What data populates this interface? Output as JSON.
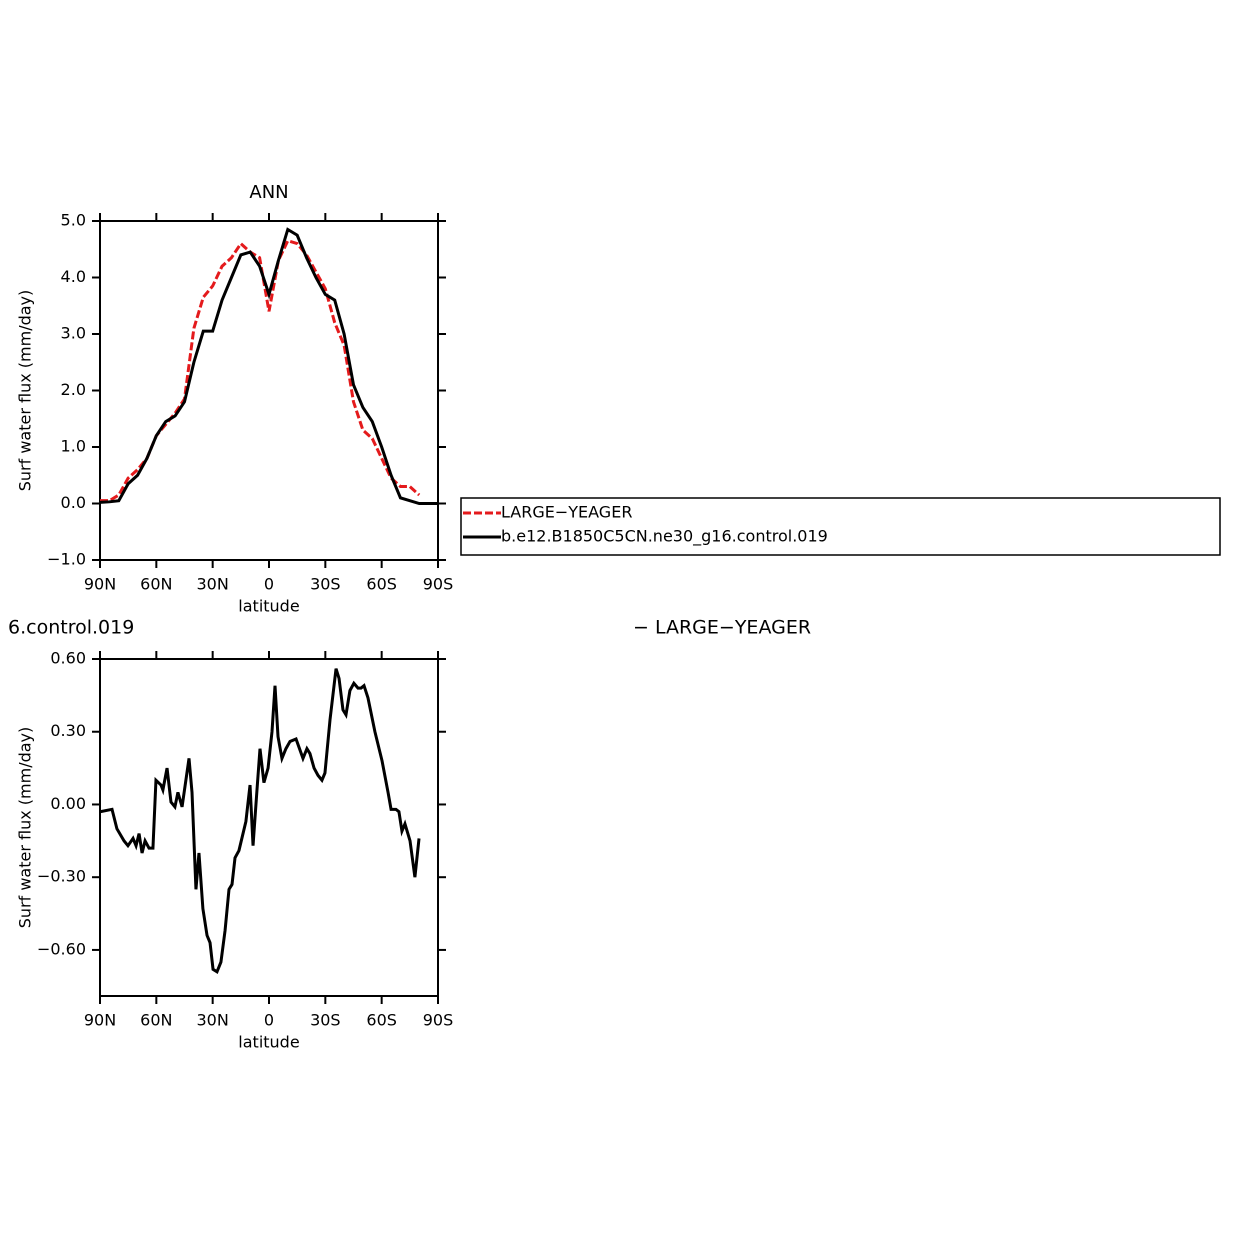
{
  "chart_data": [
    {
      "type": "line",
      "title": "ANN",
      "x_label": "latitude",
      "y_label": "Surf water flux (mm/day)",
      "xlim": [
        90,
        -90
      ],
      "xticks": [
        {
          "value": 90,
          "label": "90N"
        },
        {
          "value": 60,
          "label": "60N"
        },
        {
          "value": 30,
          "label": "30N"
        },
        0,
        {
          "value": -30,
          "label": "30S"
        },
        {
          "value": -60,
          "label": "60S"
        },
        {
          "value": -90,
          "label": "90S"
        }
      ],
      "ylim": [
        -1.0,
        5.0
      ],
      "yticks": [
        {
          "value": -1.0,
          "label": "−1.0"
        },
        {
          "value": 0.0,
          "label": "0.0"
        },
        {
          "value": 1.0,
          "label": "1.0"
        },
        {
          "value": 2.0,
          "label": "2.0"
        },
        {
          "value": 3.0,
          "label": "3.0"
        },
        {
          "value": 4.0,
          "label": "4.0"
        },
        {
          "value": 5.0,
          "label": "5.0"
        }
      ],
      "legend": "right",
      "x": [
        90,
        85,
        80,
        75,
        70,
        65,
        60,
        55,
        50,
        45,
        40,
        35,
        30,
        25,
        20,
        15,
        10,
        5,
        0,
        -5,
        -10,
        -15,
        -20,
        -25,
        -30,
        -35,
        -40,
        -45,
        -50,
        -55,
        -60,
        -65,
        -70,
        -75,
        -80,
        -85,
        -90
      ],
      "series": [
        {
          "name": "LARGE−YEAGER",
          "color": "#e41a1c",
          "style": "dashed",
          "values": [
            0.05,
            0.05,
            0.15,
            0.45,
            0.6,
            0.8,
            1.2,
            1.4,
            1.6,
            1.85,
            3.1,
            3.65,
            3.85,
            4.2,
            4.35,
            4.6,
            4.45,
            4.35,
            3.4,
            4.3,
            4.65,
            4.6,
            4.4,
            4.1,
            3.8,
            3.2,
            2.8,
            1.8,
            1.3,
            1.15,
            0.8,
            0.45,
            0.3,
            0.3,
            0.15,
            null,
            null
          ]
        },
        {
          "name": "b.e12.B1850C5CN.ne30_g16.control.019",
          "color": "#000000",
          "style": "solid",
          "values": [
            0.02,
            0.03,
            0.05,
            0.35,
            0.5,
            0.8,
            1.2,
            1.45,
            1.55,
            1.8,
            2.5,
            3.05,
            3.05,
            3.6,
            4.0,
            4.4,
            4.45,
            4.2,
            3.7,
            4.3,
            4.85,
            4.75,
            4.35,
            4.0,
            3.7,
            3.6,
            3.0,
            2.1,
            1.7,
            1.45,
            1.0,
            0.5,
            0.1,
            0.05,
            0.0,
            0.0,
            0.0
          ]
        }
      ]
    },
    {
      "type": "line",
      "title_parts": [
        "6.control.019",
        "− LARGE−YEAGER"
      ],
      "x_label": "latitude",
      "y_label": "Surf water flux (mm/day)",
      "xlim": [
        90,
        -90
      ],
      "xticks": [
        {
          "value": 90,
          "label": "90N"
        },
        {
          "value": 60,
          "label": "60N"
        },
        {
          "value": 30,
          "label": "30N"
        },
        0,
        {
          "value": -30,
          "label": "30S"
        },
        {
          "value": -60,
          "label": "60S"
        },
        {
          "value": -90,
          "label": "90S"
        }
      ],
      "ylim": [
        -0.79,
        0.6
      ],
      "yticks": [
        {
          "value": -0.6,
          "label": "−0.60"
        },
        {
          "value": -0.3,
          "label": "−0.30"
        },
        {
          "value": 0.0,
          "label": "0.00"
        },
        {
          "value": 0.3,
          "label": "0.30"
        },
        {
          "value": 0.6,
          "label": "0.60"
        }
      ],
      "x": [
        90,
        83.6,
        81,
        77.2,
        75.1,
        72.4,
        70.8,
        69.2,
        67.6,
        66,
        63.9,
        61.8,
        60.2,
        57.5,
        56.5,
        54.3,
        52.2,
        50.1,
        48.5,
        46.3,
        42.6,
        41,
        38.9,
        37.3,
        35.2,
        33,
        31.4,
        29.8,
        27.7,
        25.6,
        23.4,
        21.3,
        19.7,
        18.1,
        16,
        12.3,
        10.1,
        8.5,
        6.4,
        4.8,
        2.7,
        0.5,
        -1.6,
        -3.2,
        -4.8,
        -6.9,
        -9,
        -11.2,
        -14.4,
        -18.1,
        -20.2,
        -21.8,
        -24,
        -26.1,
        -28.2,
        -29.8,
        -32.5,
        -35.7,
        -37.3,
        -39.4,
        -41,
        -43.1,
        -45.2,
        -47.4,
        -49,
        -50.6,
        -52.7,
        -56.4,
        -60.2,
        -63.4,
        -65,
        -67.6,
        -69.2,
        -70.8,
        -72.4,
        -75.1,
        -77.7,
        -79.9
      ],
      "series": [
        {
          "color": "#000000",
          "style": "solid",
          "values": [
            -0.03,
            -0.02,
            -0.1,
            -0.15,
            -0.17,
            -0.14,
            -0.17,
            -0.12,
            -0.2,
            -0.15,
            -0.18,
            -0.18,
            0.1,
            0.08,
            0.06,
            0.15,
            0.01,
            -0.01,
            0.05,
            -0.01,
            0.19,
            0.05,
            -0.35,
            -0.2,
            -0.43,
            -0.54,
            -0.57,
            -0.68,
            -0.69,
            -0.65,
            -0.52,
            -0.35,
            -0.33,
            -0.22,
            -0.19,
            -0.07,
            0.08,
            -0.17,
            0.06,
            0.23,
            0.09,
            0.15,
            0.3,
            0.49,
            0.28,
            0.19,
            0.23,
            0.26,
            0.27,
            0.19,
            0.23,
            0.21,
            0.15,
            0.12,
            0.1,
            0.13,
            0.35,
            0.56,
            0.52,
            0.39,
            0.37,
            0.47,
            0.5,
            0.48,
            0.48,
            0.49,
            0.44,
            0.3,
            0.18,
            0.05,
            -0.02,
            -0.02,
            -0.03,
            -0.11,
            -0.08,
            -0.15,
            -0.3,
            -0.14
          ]
        }
      ]
    }
  ]
}
